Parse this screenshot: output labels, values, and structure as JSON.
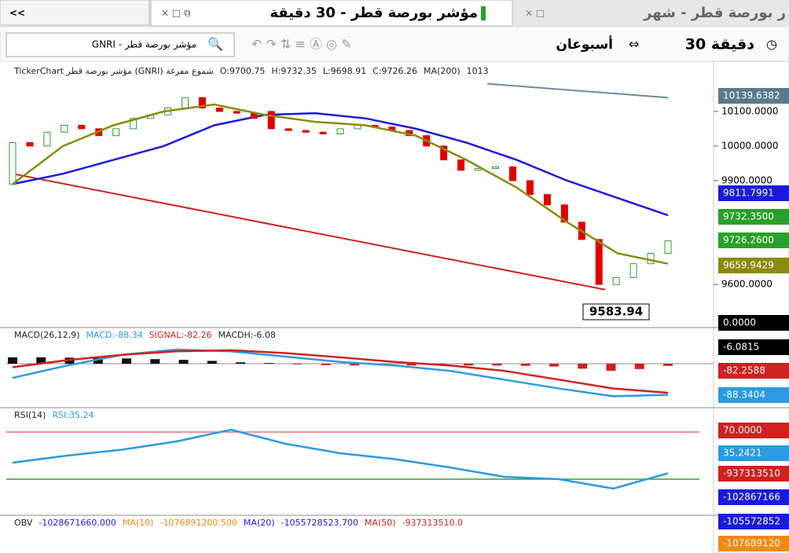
{
  "tabs": {
    "nav": "<<",
    "active": "مؤشر بورصة قطر - 30 دقيقة",
    "other": "ر بورصة قطر - شهر"
  },
  "toolbar": {
    "search": "GNRI - مؤشر بورصة قطر",
    "period": "أسبوعان",
    "interval": "30 دقيقة"
  },
  "main": {
    "info": [
      "TickerChart مؤشر بورصة قطر (GNRI) شموع مفرغة",
      "O:9700.75",
      "H:9732.35",
      "L:9698.91",
      "C:9726.26",
      "MA(200)",
      "1013"
    ],
    "ylim": [
      9480,
      10245
    ],
    "yticks": [
      {
        "value": 10100,
        "label": "10100.0000"
      },
      {
        "value": 10000,
        "label": "10000.0000"
      },
      {
        "value": 9900,
        "label": "9900.0000"
      },
      {
        "value": 9600,
        "label": "9600.0000"
      }
    ],
    "candles": [
      [
        9890,
        10010
      ],
      [
        10010,
        10000
      ],
      [
        10000,
        10040
      ],
      [
        10040,
        10060
      ],
      [
        10060,
        10050
      ],
      [
        10050,
        10030
      ],
      [
        10030,
        10050
      ],
      [
        10050,
        10080
      ],
      [
        10080,
        10090
      ],
      [
        10090,
        10110
      ],
      [
        10110,
        10140
      ],
      [
        10140,
        10110
      ],
      [
        10110,
        10100
      ],
      [
        10100,
        10095
      ],
      [
        10095,
        10080
      ],
      [
        10100,
        10050
      ],
      [
        10050,
        10045
      ],
      [
        10045,
        10040
      ],
      [
        10040,
        10035
      ],
      [
        10035,
        10050
      ],
      [
        10050,
        10060
      ],
      [
        10060,
        10055
      ],
      [
        10055,
        10045
      ],
      [
        10045,
        10030
      ],
      [
        10030,
        10000
      ],
      [
        10000,
        9960
      ],
      [
        9960,
        9930
      ],
      [
        9930,
        9935
      ],
      [
        9935,
        9940
      ],
      [
        9940,
        9900
      ],
      [
        9900,
        9860
      ],
      [
        9860,
        9830
      ],
      [
        9830,
        9780
      ],
      [
        9780,
        9730
      ],
      [
        9730,
        9600
      ],
      [
        9600,
        9620
      ],
      [
        9620,
        9660
      ],
      [
        9660,
        9690
      ],
      [
        9690,
        9726
      ]
    ],
    "ma_fast": {
      "color": "#8a8a10",
      "values": [
        9890,
        10000,
        10060,
        10100,
        10120,
        10090,
        10070,
        10060,
        10030,
        9960,
        9880,
        9780,
        9690,
        9660
      ]
    },
    "ma_slow": {
      "color": "#1a1adc",
      "values": [
        9890,
        9920,
        9960,
        10000,
        10060,
        10090,
        10095,
        10080,
        10050,
        10010,
        9960,
        9900,
        9850,
        9800
      ]
    },
    "ma200": {
      "color": "#6d8a9c",
      "values": [
        10180,
        10140
      ]
    },
    "trendline": {
      "color": "#d02020",
      "values": [
        9920,
        9585
      ]
    },
    "low_label": "9583.94",
    "right_labels": [
      {
        "text": "10139.6382",
        "color": "#5a7a8c"
      },
      {
        "text": "9811.7991",
        "color": "#1a1adc"
      },
      {
        "text": "9732.3500",
        "color": "#2aa02a"
      },
      {
        "text": "9726.2600",
        "color": "#2aa02a"
      },
      {
        "text": "9659.9429",
        "color": "#8a8a10"
      },
      {
        "text": "0.0000",
        "color": "#000000"
      }
    ]
  },
  "macd": {
    "info": [
      "MACD(26,12,9)",
      "MACD:-88.34",
      "SIGNAL:-82.26",
      "MACDH:-6.08"
    ],
    "ylim": [
      -122,
      100
    ],
    "hist": [
      18,
      18,
      17,
      16,
      15,
      13,
      11,
      8,
      4,
      2,
      -2,
      -4,
      -5,
      -5,
      -5,
      -5,
      -5,
      -5,
      -6,
      -8,
      -14,
      -20,
      -15,
      -6
    ],
    "macd_line": {
      "color": "#2a9be0",
      "values": [
        -40,
        -5,
        25,
        40,
        35,
        20,
        5,
        -5,
        -20,
        -45,
        -70,
        -92,
        -88
      ]
    },
    "signal": {
      "color": "#d02020",
      "values": [
        -10,
        10,
        25,
        35,
        38,
        30,
        18,
        5,
        -5,
        -20,
        -45,
        -70,
        -82
      ]
    },
    "right_labels": [
      {
        "text": "-6.0815",
        "color": "#000000"
      },
      {
        "text": "-82.2588",
        "color": "#d02020"
      },
      {
        "text": "-88.3404",
        "color": "#2a9be0"
      }
    ]
  },
  "rsi": {
    "info": [
      "RSI(14)",
      "RSI:35.24"
    ],
    "ylim": [
      0,
      90
    ],
    "levels": [
      70,
      30
    ],
    "line": {
      "color": "#2a9be0",
      "values": [
        44,
        50,
        55,
        62,
        72,
        60,
        52,
        47,
        40,
        32,
        30,
        22,
        35
      ]
    },
    "right_labels": [
      {
        "text": "70.0000",
        "color": "#d02020"
      },
      {
        "text": "35.2421",
        "color": "#2a9be0"
      },
      {
        "text": "-937313510",
        "color": "#d02020"
      },
      {
        "text": "-102867166",
        "color": "#1a1adc"
      }
    ]
  },
  "obv": {
    "info": [
      "OBV",
      "-1028671660.000",
      "MA(10)",
      "-1076891200.500",
      "MA(20)",
      "-1055728523.700",
      "MA(50)",
      "-937313510.0"
    ],
    "right_labels": [
      {
        "text": "-105572852",
        "color": "#1a1adc"
      },
      {
        "text": "-107689120",
        "color": "#f08a10"
      }
    ]
  }
}
